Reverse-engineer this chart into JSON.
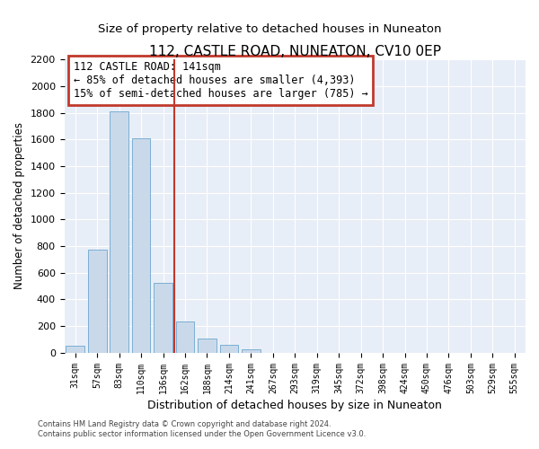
{
  "title": "112, CASTLE ROAD, NUNEATON, CV10 0EP",
  "subtitle": "Size of property relative to detached houses in Nuneaton",
  "xlabel": "Distribution of detached houses by size in Nuneaton",
  "ylabel": "Number of detached properties",
  "bar_labels": [
    "31sqm",
    "57sqm",
    "83sqm",
    "110sqm",
    "136sqm",
    "162sqm",
    "188sqm",
    "214sqm",
    "241sqm",
    "267sqm",
    "293sqm",
    "319sqm",
    "345sqm",
    "372sqm",
    "398sqm",
    "424sqm",
    "450sqm",
    "476sqm",
    "503sqm",
    "529sqm",
    "555sqm"
  ],
  "bar_values": [
    50,
    775,
    1810,
    1605,
    520,
    230,
    105,
    55,
    25,
    0,
    0,
    0,
    0,
    0,
    0,
    0,
    0,
    0,
    0,
    0,
    0
  ],
  "bar_color": "#c9d9ea",
  "bar_edge_color": "#7bafd4",
  "vline_color": "#c0392b",
  "annotation_title": "112 CASTLE ROAD: 141sqm",
  "annotation_line1": "← 85% of detached houses are smaller (4,393)",
  "annotation_line2": "15% of semi-detached houses are larger (785) →",
  "annotation_box_color": "#c0392b",
  "ylim": [
    0,
    2200
  ],
  "yticks": [
    0,
    200,
    400,
    600,
    800,
    1000,
    1200,
    1400,
    1600,
    1800,
    2000,
    2200
  ],
  "footnote1": "Contains HM Land Registry data © Crown copyright and database right 2024.",
  "footnote2": "Contains public sector information licensed under the Open Government Licence v3.0.",
  "background_color": "#ffffff",
  "plot_bg_color": "#e8eef7",
  "grid_color": "#ffffff",
  "title_fontsize": 11,
  "subtitle_fontsize": 9.5
}
